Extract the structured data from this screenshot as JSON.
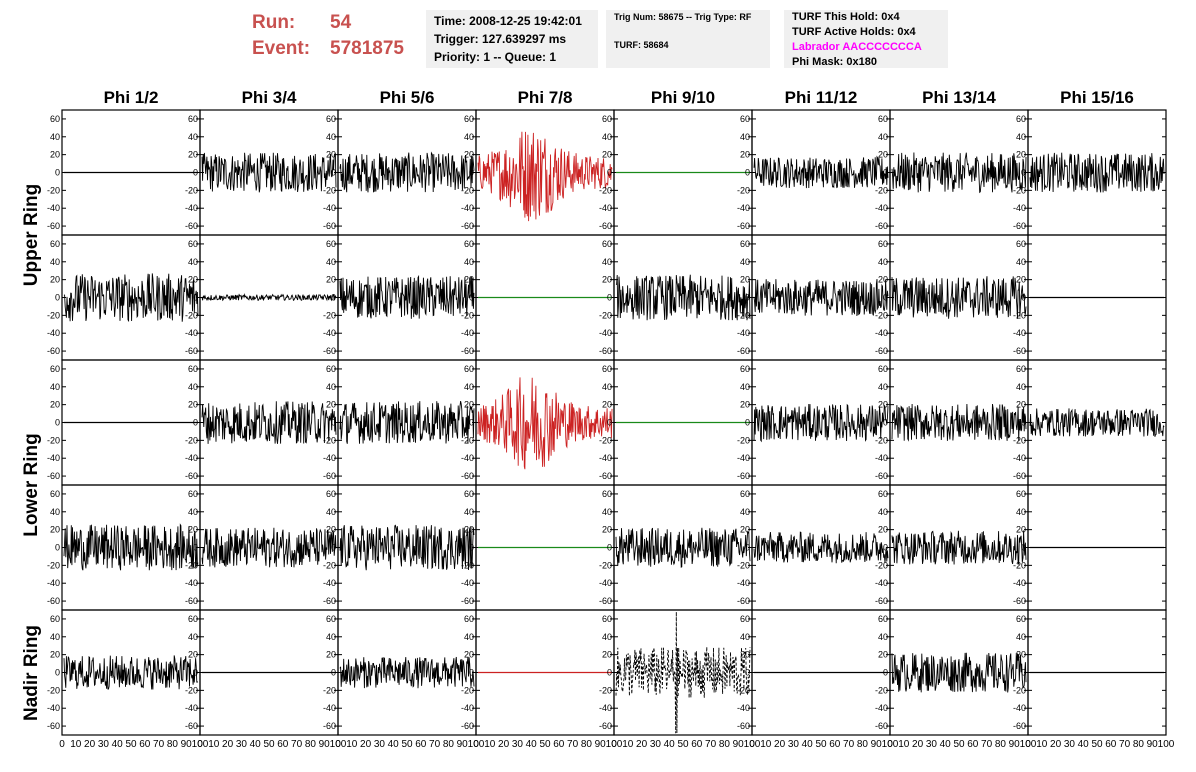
{
  "header": {
    "run_label": "Run:",
    "run_value": "54",
    "event_label": "Event:",
    "event_value": "5781875",
    "time": "Time: 2008-12-25 19:42:01",
    "trigger": "Trigger: 127.639297 ms",
    "priority": "Priority: 1 -- Queue: 1",
    "trig_num": "Trig Num: 58675 -- Trig Type: RF",
    "turf": "TURF: 58684",
    "turf_this_hold": "TURF This Hold: 0x4",
    "turf_active_holds": "TURF Active Holds: 0x4",
    "labrador": "Labrador AACCCCCCCA",
    "phi_mask": "Phi Mask: 0x180"
  },
  "colors": {
    "title": "#c8514f",
    "labrador": "#ff00ff",
    "trace_default": "#000000",
    "trace_red": "#cc2222",
    "trace_green": "#1a8a1a",
    "info_box_bg": "#f0f0f0"
  },
  "chart_data": {
    "type": "line",
    "columns": [
      "Phi 1/2",
      "Phi 3/4",
      "Phi 5/6",
      "Phi 7/8",
      "Phi 9/10",
      "Phi 11/12",
      "Phi 13/14",
      "Phi 15/16"
    ],
    "rows": [
      "Upper Ring",
      "Lower Ring",
      "Nadir Ring"
    ],
    "ylim": [
      -70,
      70
    ],
    "yticks": [
      -60,
      -40,
      -20,
      0,
      20,
      40,
      60
    ],
    "xlim": [
      0,
      100
    ],
    "xticks": [
      0,
      10,
      20,
      30,
      40,
      50,
      60,
      70,
      80,
      90,
      100
    ],
    "panels": [
      [
        {
          "amp": 0,
          "color": "black"
        },
        {
          "amp": 14,
          "color": "black"
        },
        {
          "amp": 14,
          "color": "black"
        },
        {
          "amp": 26,
          "color": "red",
          "burst": true
        },
        {
          "amp": 0,
          "color": "green"
        },
        {
          "amp": 11,
          "color": "black"
        },
        {
          "amp": 14,
          "color": "black"
        },
        {
          "amp": 14,
          "color": "black"
        }
      ],
      [
        {
          "amp": 17,
          "color": "black"
        },
        {
          "amp": 2,
          "color": "black"
        },
        {
          "amp": 15,
          "color": "black"
        },
        {
          "amp": 0,
          "color": "green"
        },
        {
          "amp": 16,
          "color": "black"
        },
        {
          "amp": 13,
          "color": "black"
        },
        {
          "amp": 15,
          "color": "black"
        },
        {
          "amp": 0,
          "color": "black"
        }
      ],
      [
        {
          "amp": 0,
          "color": "black"
        },
        {
          "amp": 15,
          "color": "black"
        },
        {
          "amp": 15,
          "color": "black"
        },
        {
          "amp": 26,
          "color": "red",
          "burst": true
        },
        {
          "amp": 0,
          "color": "green"
        },
        {
          "amp": 13,
          "color": "black"
        },
        {
          "amp": 13,
          "color": "black"
        },
        {
          "amp": 10,
          "color": "black"
        }
      ],
      [
        {
          "amp": 16,
          "color": "black"
        },
        {
          "amp": 14,
          "color": "black"
        },
        {
          "amp": 16,
          "color": "black"
        },
        {
          "amp": 0,
          "color": "green"
        },
        {
          "amp": 14,
          "color": "black"
        },
        {
          "amp": 11,
          "color": "black"
        },
        {
          "amp": 12,
          "color": "black"
        },
        {
          "amp": 0,
          "color": "black"
        }
      ],
      [
        {
          "amp": 12,
          "color": "black"
        },
        {
          "amp": 0,
          "color": "black"
        },
        {
          "amp": 11,
          "color": "black"
        },
        {
          "amp": 0,
          "color": "red"
        },
        {
          "amp": 18,
          "color": "black",
          "dashed": true,
          "spike": true
        },
        {
          "amp": 0,
          "color": "black"
        },
        {
          "amp": 14,
          "color": "black"
        },
        {
          "amp": 0,
          "color": "black"
        }
      ]
    ]
  }
}
